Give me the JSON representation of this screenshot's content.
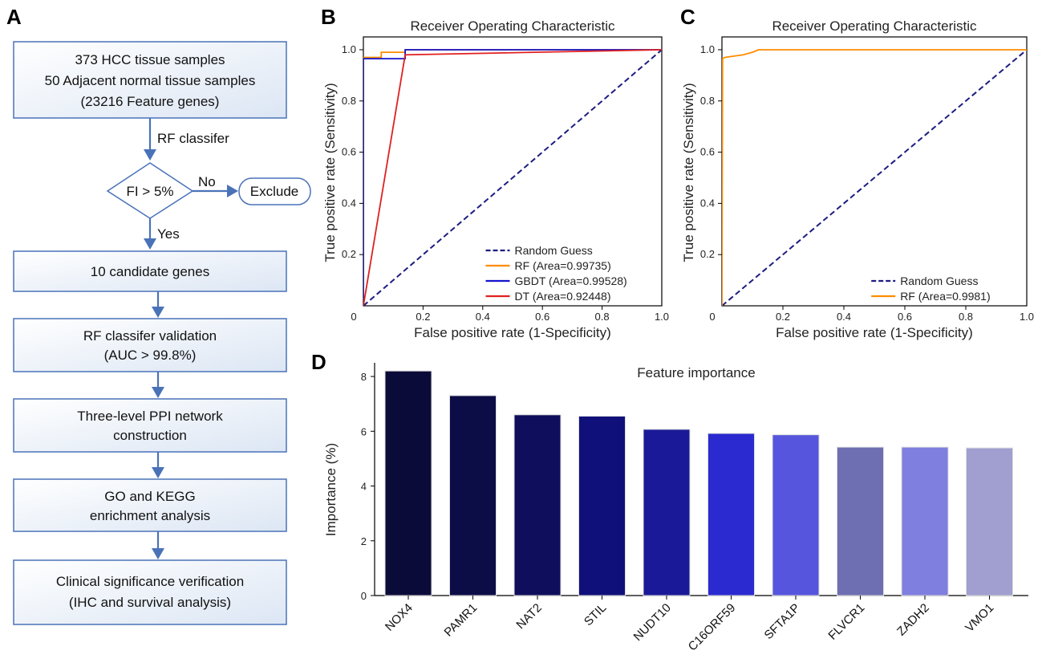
{
  "panels": {
    "a": "A",
    "b": "B",
    "c": "C",
    "d": "D"
  },
  "flowchart": {
    "box1": [
      "373 HCC tissue samples",
      "50 Adjacent normal tissue samples",
      "(23216 Feature genes)"
    ],
    "rf_label": "RF classifer",
    "decision": "FI > 5%",
    "no_label": "No",
    "exclude": "Exclude",
    "yes_label": "Yes",
    "box2": [
      "10 candidate genes"
    ],
    "box3": [
      "RF classifer validation",
      "(AUC > 99.8%)"
    ],
    "box4": [
      "Three-level PPI network",
      "construction"
    ],
    "box5": [
      "GO and KEGG",
      "enrichment analysis"
    ],
    "box6": [
      "Clinical significance verification",
      "(IHC and survival analysis)"
    ]
  },
  "colors": {
    "flow_border": "#4a72b8",
    "random_guess": "#1c1c80",
    "rf": "#ff8c00",
    "gbdt": "#1414cc",
    "dt": "#e02020"
  },
  "chart_data": [
    {
      "id": "roc_b",
      "type": "line",
      "title": "Receiver Operating Characteristic",
      "xlabel": "False positive rate (1-Specificity)",
      "ylabel": "True positive rate (Sensitivity)",
      "xlim": [
        0,
        1
      ],
      "ylim": [
        0,
        1.05
      ],
      "xticks": [
        "0",
        "0.2",
        "0.4",
        "0.6",
        "0.8",
        "1.0"
      ],
      "yticks": [
        "0.2",
        "0.4",
        "0.6",
        "0.8",
        "1.0"
      ],
      "legend_position": "lower-right",
      "series": [
        {
          "name": "Random Guess",
          "style": "dashed",
          "color": "#1c1c80",
          "x": [
            0,
            1
          ],
          "y": [
            0,
            1
          ]
        },
        {
          "name": "RF (Area=0.99735)",
          "style": "solid",
          "color": "#ff8c00",
          "x": [
            0,
            0,
            0.06,
            0.06,
            0.14,
            0.14,
            1.0
          ],
          "y": [
            0,
            0.97,
            0.97,
            0.99,
            0.99,
            1.0,
            1.0
          ]
        },
        {
          "name": "GBDT (Area=0.99528)",
          "style": "solid",
          "color": "#1414cc",
          "x": [
            0,
            0,
            0.14,
            0.14,
            1.0
          ],
          "y": [
            0,
            0.965,
            0.965,
            1.0,
            1.0
          ]
        },
        {
          "name": "DT (Area=0.92448)",
          "style": "solid",
          "color": "#e02020",
          "x": [
            0,
            0.14,
            1.0
          ],
          "y": [
            0,
            0.98,
            1.0
          ]
        }
      ]
    },
    {
      "id": "roc_c",
      "type": "line",
      "title": "Receiver Operating Characteristic",
      "xlabel": "False positive rate (1-Specificity)",
      "ylabel": "True positive rate (Sensitivity)",
      "xlim": [
        0,
        1
      ],
      "ylim": [
        0,
        1.05
      ],
      "xticks": [
        "0",
        "0.2",
        "0.4",
        "0.6",
        "0.8",
        "1.0"
      ],
      "yticks": [
        "0.2",
        "0.4",
        "0.6",
        "0.8",
        "1.0"
      ],
      "legend_position": "lower-right",
      "series": [
        {
          "name": "Random Guess",
          "style": "dashed",
          "color": "#1c1c80",
          "x": [
            0,
            1
          ],
          "y": [
            0,
            1
          ]
        },
        {
          "name": "RF (Area=0.9981)",
          "style": "solid",
          "color": "#ff8c00",
          "x": [
            0,
            0.002,
            0.01,
            0.04,
            0.07,
            0.1,
            0.12,
            1.0
          ],
          "y": [
            0,
            0.965,
            0.97,
            0.975,
            0.98,
            0.99,
            1.0,
            1.0
          ]
        }
      ]
    },
    {
      "id": "importance_d",
      "type": "bar",
      "title": "Feature importance",
      "xlabel": "",
      "ylabel": "Importance (%)",
      "ylim": [
        0,
        8.5
      ],
      "yticks": [
        "0",
        "2",
        "4",
        "6",
        "8"
      ],
      "categories": [
        "NOX4",
        "PAMR1",
        "NAT2",
        "STIL",
        "NUDT10",
        "C16ORF59",
        "SFTA1P",
        "FLVCR1",
        "ZADH2",
        "VMO1"
      ],
      "values": [
        8.2,
        7.3,
        6.6,
        6.55,
        6.07,
        5.92,
        5.87,
        5.42,
        5.42,
        5.39
      ],
      "bar_colors": [
        "#0b0b3a",
        "#0c0c47",
        "#0e0e5c",
        "#10107a",
        "#1a1a98",
        "#2a2ad0",
        "#5555dd",
        "#6e6eb2",
        "#7f7fe0",
        "#a09fd0"
      ]
    }
  ]
}
